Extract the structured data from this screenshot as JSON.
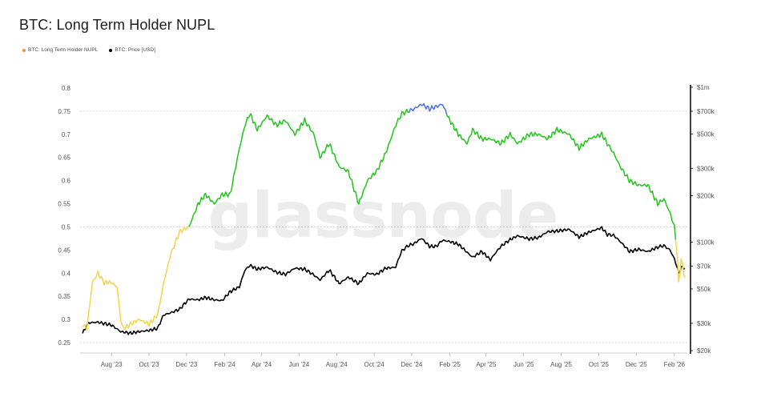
{
  "title": "BTC: Long Term Holder NUPL",
  "watermark": "glassnode",
  "legend": [
    {
      "label": "BTC: Long Term Holder NUPL",
      "color": "#f7931a"
    },
    {
      "label": "BTC: Price [USD]",
      "color": "#000000"
    }
  ],
  "colors": {
    "nupl_low": "#f5d44a",
    "nupl_mid": "#22c41c",
    "nupl_high": "#4a6cf0",
    "price": "#000000",
    "grid": "#cfcfcf"
  },
  "chart_data": {
    "type": "line",
    "title": "BTC: Long Term Holder NUPL",
    "x_tick_labels": [
      "Aug '23",
      "Oct '23",
      "Dec '23",
      "Feb '24",
      "Apr '24",
      "Jun '24",
      "Aug '24",
      "Oct '24",
      "Dec '24",
      "Feb '25",
      "Apr '25",
      "Jun '25",
      "Aug '25",
      "Oct '25",
      "Dec '25",
      "Feb '26"
    ],
    "y_left": {
      "ticks": [
        0.25,
        0.3,
        0.35,
        0.4,
        0.45,
        0.5,
        0.55,
        0.6,
        0.65,
        0.7,
        0.75,
        0.8
      ],
      "tick_labels": [
        "0.25",
        "0.3",
        "0.35",
        "0.4",
        "0.45",
        "0.5",
        "0.55",
        "0.6",
        "0.65",
        "0.7",
        "0.75",
        "0.8"
      ],
      "range": [
        0.24,
        0.81
      ]
    },
    "y_right": {
      "scale": "log",
      "ticks": [
        20000,
        30000,
        50000,
        70000,
        100000,
        200000,
        300000,
        500000,
        700000,
        1000000
      ],
      "tick_labels": [
        "$20k",
        "$30k",
        "$50k",
        "$70k",
        "$100k",
        "$200k",
        "$300k",
        "$500k",
        "$700k",
        "$1m"
      ]
    },
    "grid_levels": [
      0.25,
      0.5,
      0.75
    ],
    "nupl_color_bands": [
      {
        "below": 0.5,
        "color": "low"
      },
      {
        "below": 0.75,
        "color": "mid"
      },
      {
        "above": 0.75,
        "color": "high"
      }
    ],
    "series": [
      {
        "name": "BTC: Long Term Holder NUPL",
        "axis": "left",
        "x": [
          "2023-06-15",
          "2023-06-22",
          "2023-07-01",
          "2023-07-10",
          "2023-07-20",
          "2023-08-01",
          "2023-08-10",
          "2023-08-16",
          "2023-08-20",
          "2023-09-01",
          "2023-09-15",
          "2023-10-01",
          "2023-10-15",
          "2023-10-25",
          "2023-11-05",
          "2023-11-20",
          "2023-12-05",
          "2023-12-20",
          "2024-01-01",
          "2024-01-15",
          "2024-01-28",
          "2024-02-10",
          "2024-02-25",
          "2024-03-05",
          "2024-03-13",
          "2024-03-25",
          "2024-04-10",
          "2024-04-25",
          "2024-05-10",
          "2024-05-25",
          "2024-06-10",
          "2024-06-25",
          "2024-07-05",
          "2024-07-20",
          "2024-08-05",
          "2024-08-20",
          "2024-09-06",
          "2024-09-20",
          "2024-10-05",
          "2024-10-20",
          "2024-11-05",
          "2024-11-15",
          "2024-11-25",
          "2024-12-05",
          "2024-12-17",
          "2024-12-30",
          "2025-01-10",
          "2025-01-20",
          "2025-02-01",
          "2025-02-15",
          "2025-03-01",
          "2025-03-10",
          "2025-03-25",
          "2025-04-08",
          "2025-04-25",
          "2025-05-10",
          "2025-05-22",
          "2025-06-10",
          "2025-06-25",
          "2025-07-10",
          "2025-07-25",
          "2025-08-14",
          "2025-08-30",
          "2025-09-15",
          "2025-10-06",
          "2025-10-15",
          "2025-10-25",
          "2025-11-05",
          "2025-11-20",
          "2025-12-05",
          "2025-12-20",
          "2026-01-05",
          "2026-01-15",
          "2026-01-25",
          "2026-02-01",
          "2026-02-05",
          "2026-02-08",
          "2026-02-12",
          "2026-02-18"
        ],
        "values": [
          0.29,
          0.28,
          0.38,
          0.4,
          0.38,
          0.38,
          0.37,
          0.3,
          0.28,
          0.29,
          0.3,
          0.29,
          0.31,
          0.38,
          0.44,
          0.49,
          0.5,
          0.55,
          0.57,
          0.55,
          0.57,
          0.57,
          0.67,
          0.72,
          0.745,
          0.71,
          0.74,
          0.72,
          0.73,
          0.7,
          0.73,
          0.7,
          0.65,
          0.68,
          0.63,
          0.62,
          0.55,
          0.6,
          0.62,
          0.66,
          0.72,
          0.745,
          0.75,
          0.755,
          0.765,
          0.755,
          0.76,
          0.765,
          0.73,
          0.7,
          0.68,
          0.71,
          0.69,
          0.69,
          0.68,
          0.7,
          0.68,
          0.7,
          0.7,
          0.69,
          0.71,
          0.7,
          0.67,
          0.69,
          0.7,
          0.68,
          0.66,
          0.63,
          0.6,
          0.59,
          0.59,
          0.55,
          0.56,
          0.53,
          0.5,
          0.45,
          0.38,
          0.43,
          0.39
        ]
      },
      {
        "name": "BTC: Price [USD]",
        "axis": "right",
        "x": [
          "2023-06-15",
          "2023-06-25",
          "2023-07-10",
          "2023-08-01",
          "2023-08-16",
          "2023-09-01",
          "2023-09-15",
          "2023-10-01",
          "2023-10-15",
          "2023-10-25",
          "2023-11-05",
          "2023-11-20",
          "2023-12-05",
          "2023-12-20",
          "2024-01-01",
          "2024-01-15",
          "2024-01-28",
          "2024-02-10",
          "2024-02-25",
          "2024-03-05",
          "2024-03-13",
          "2024-03-25",
          "2024-04-10",
          "2024-04-25",
          "2024-05-10",
          "2024-05-25",
          "2024-06-10",
          "2024-06-25",
          "2024-07-05",
          "2024-07-20",
          "2024-08-05",
          "2024-08-20",
          "2024-09-06",
          "2024-09-20",
          "2024-10-05",
          "2024-10-20",
          "2024-11-05",
          "2024-11-15",
          "2024-11-25",
          "2024-12-05",
          "2024-12-17",
          "2024-12-30",
          "2025-01-10",
          "2025-01-20",
          "2025-02-01",
          "2025-02-15",
          "2025-03-01",
          "2025-03-10",
          "2025-03-25",
          "2025-04-08",
          "2025-04-25",
          "2025-05-10",
          "2025-05-22",
          "2025-06-10",
          "2025-06-25",
          "2025-07-10",
          "2025-07-25",
          "2025-08-14",
          "2025-08-30",
          "2025-09-15",
          "2025-10-06",
          "2025-10-15",
          "2025-10-25",
          "2025-11-05",
          "2025-11-20",
          "2025-12-05",
          "2025-12-20",
          "2026-01-05",
          "2026-01-15",
          "2026-01-25",
          "2026-02-01",
          "2026-02-05",
          "2026-02-08",
          "2026-02-12",
          "2026-02-18"
        ],
        "values": [
          25800,
          30200,
          30500,
          29200,
          26500,
          25900,
          26500,
          27000,
          27800,
          34000,
          35000,
          37000,
          43000,
          42500,
          44000,
          42500,
          42000,
          48000,
          51500,
          66000,
          71000,
          67000,
          69000,
          64000,
          62000,
          68000,
          67000,
          61500,
          57000,
          66000,
          54000,
          59500,
          54000,
          63000,
          62000,
          68000,
          69000,
          88000,
          95000,
          98000,
          106000,
          94000,
          94000,
          103000,
          101000,
          97000,
          86000,
          80000,
          87000,
          77000,
          94000,
          104000,
          110000,
          105000,
          107000,
          117000,
          118000,
          121000,
          108000,
          116000,
          124000,
          112000,
          111000,
          101000,
          87000,
          90000,
          87000,
          93000,
          95000,
          89000,
          78000,
          70000,
          63000,
          69000,
          68000
        ]
      }
    ]
  }
}
